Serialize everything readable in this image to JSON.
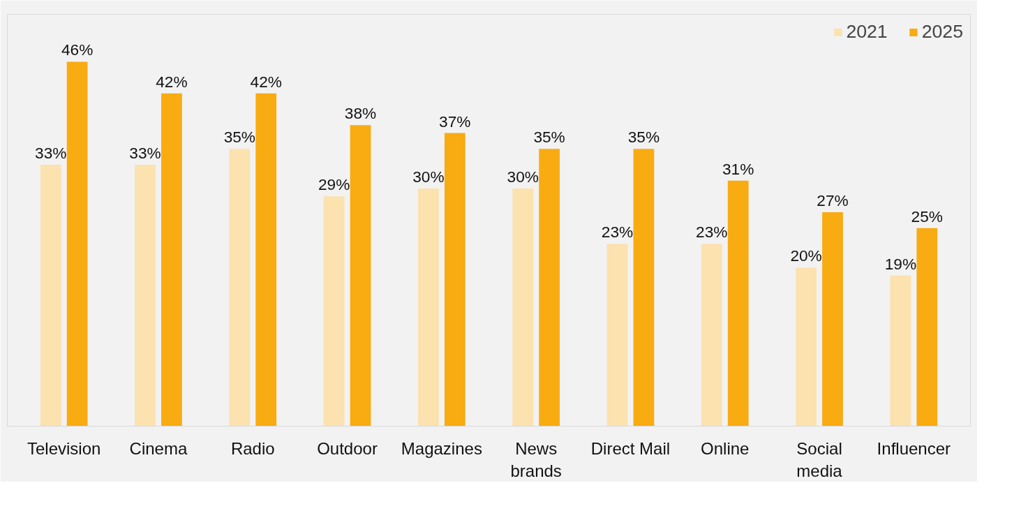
{
  "chart_data": {
    "type": "bar",
    "categories": [
      "Television",
      "Cinema",
      "Radio",
      "Outdoor",
      "Magazines",
      "News\nbrands",
      "Direct Mail",
      "Online",
      "Social\nmedia",
      "Influencer"
    ],
    "series": [
      {
        "name": "2021",
        "color": "#fbe2ae",
        "values": [
          33,
          33,
          35,
          29,
          30,
          30,
          23,
          23,
          20,
          19
        ],
        "value_labels": [
          "33%",
          "33%",
          "35%",
          "29%",
          "30%",
          "30%",
          "23%",
          "23%",
          "20%",
          "19%"
        ]
      },
      {
        "name": "2025",
        "color": "#f9ab12",
        "values": [
          46,
          42,
          42,
          38,
          37,
          35,
          35,
          31,
          27,
          25
        ],
        "value_labels": [
          "46%",
          "42%",
          "42%",
          "38%",
          "37%",
          "35%",
          "35%",
          "31%",
          "27%",
          "25%"
        ]
      }
    ],
    "legend": "top right",
    "grid": false
  }
}
